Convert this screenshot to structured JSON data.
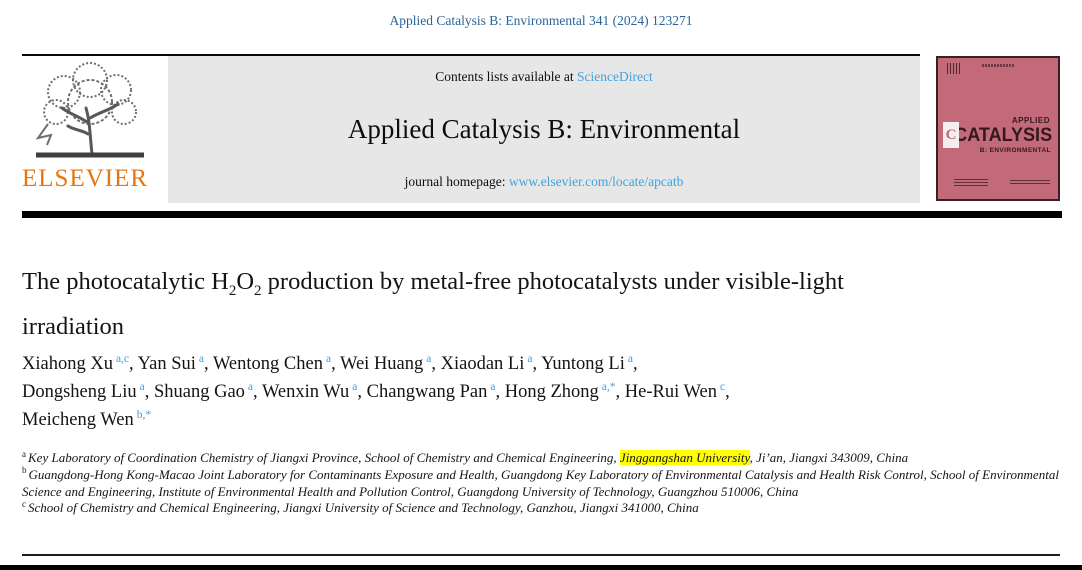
{
  "colors": {
    "citation_blue": "#2b6399",
    "link_blue": "#41a3dc",
    "elsevier_orange": "#e8750e",
    "banner_gray": "#e7e7e7",
    "cover_pink": "#c2697a",
    "cover_ink": "#33191f",
    "cover_border": "#3a2026",
    "highlight_yellow": "#ffff00",
    "sup_blue": "#3f9fd8",
    "rule_black": "#0a0a0a"
  },
  "masthead": {
    "citation": "Applied Catalysis B: Environmental 341 (2024) 123271"
  },
  "banner": {
    "publisher": "ELSEVIER",
    "contents_prefix": "Contents lists available at ",
    "sciencedirect_link": "ScienceDirect",
    "journal_title": "Applied Catalysis B: Environmental",
    "homepage_prefix": "journal homepage: ",
    "homepage_link": "www.elsevier.com/locate/apcatb"
  },
  "cover": {
    "applied": "APPLIED",
    "catalysis": "CATALYSIS",
    "subtitle": "B: ENVIRONMENTAL",
    "c_mark": "C"
  },
  "article": {
    "title_parts": {
      "t1": "The photocatalytic H",
      "sub1": "2",
      "t2": "O",
      "sub2": "2",
      "t3": " production by metal-free photocatalysts under visible-light irradiation"
    },
    "authors": [
      {
        "name": "Xiahong Xu",
        "sup": "a,c"
      },
      {
        "name": "Yan Sui",
        "sup": "a"
      },
      {
        "name": "Wentong Chen",
        "sup": "a"
      },
      {
        "name": "Wei Huang",
        "sup": "a"
      },
      {
        "name": "Xiaodan Li",
        "sup": "a"
      },
      {
        "name": "Yuntong Li",
        "sup": "a",
        "break_after": true
      },
      {
        "name": "Dongsheng Liu",
        "sup": "a"
      },
      {
        "name": "Shuang Gao",
        "sup": "a"
      },
      {
        "name": "Wenxin Wu",
        "sup": "a"
      },
      {
        "name": "Changwang Pan",
        "sup": "a"
      },
      {
        "name": "Hong Zhong",
        "sup": "a,*"
      },
      {
        "name": "He-Rui Wen",
        "sup": "c",
        "break_after": true
      },
      {
        "name": "Meicheng Wen",
        "sup": "b,*"
      }
    ],
    "affiliations": [
      {
        "sup": "a",
        "segments": [
          {
            "text": "Key Laboratory of Coordination Chemistry of Jiangxi Province, School of Chemistry and Chemical Engineering, "
          },
          {
            "text": "Jinggangshan University",
            "highlight": true
          },
          {
            "text": ", Ji’an, Jiangxi 343009, China"
          }
        ]
      },
      {
        "sup": "b",
        "segments": [
          {
            "text": "Guangdong-Hong Kong-Macao Joint Laboratory for Contaminants Exposure and Health, Guangdong Key Laboratory of Environmental Catalysis and Health Risk Control, School of Environmental Science and Engineering, Institute of Environmental Health and Pollution Control, Guangdong University of Technology, Guangzhou 510006, China"
          }
        ]
      },
      {
        "sup": "c",
        "segments": [
          {
            "text": "School of Chemistry and Chemical Engineering, Jiangxi University of Science and Technology, Ganzhou, Jiangxi 341000, China"
          }
        ]
      }
    ]
  }
}
